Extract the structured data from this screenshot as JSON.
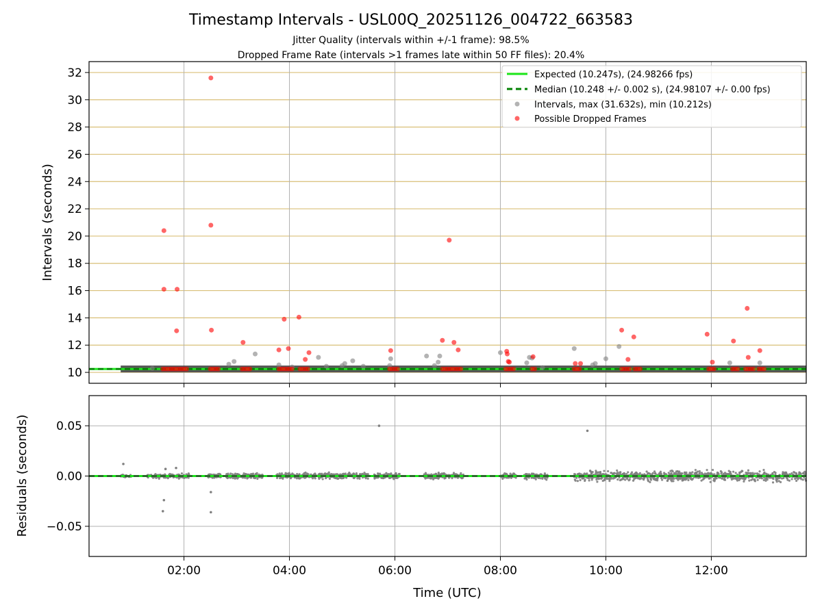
{
  "figure": {
    "title": "Timestamp Intervals - USL00Q_20251126_004722_663583",
    "subtitle_line1": "Jitter Quality (intervals within +/-1 frame): 98.5%",
    "subtitle_line2": "Dropped Frame Rate (intervals >1 frames late within 50 FF files): 20.4%"
  },
  "colors": {
    "expected_line": "#19e619",
    "median_line": "#008000",
    "intervals_points": "#808080",
    "dropped_points": "#ff0000",
    "band": "#444444",
    "hgrid_top": "#d9bf77",
    "grid": "#b0b0b0"
  },
  "chart_data": [
    {
      "type": "scatter",
      "panel": "top",
      "xlabel": "",
      "ylabel": "Intervals (seconds)",
      "xlim": [
        0.2,
        13.8
      ],
      "ylim": [
        9.2,
        32.8
      ],
      "x_ticks": [
        2,
        4,
        6,
        8,
        10,
        12
      ],
      "y_ticks": [
        10,
        12,
        14,
        16,
        18,
        20,
        22,
        24,
        26,
        28,
        30,
        32
      ],
      "grid": "on",
      "legend_position": "top-right",
      "legend": [
        "Expected (10.247s), (24.98266 fps)",
        "Median (10.248 +/- 0.002 s), (24.98107 +/- 0.00 fps)",
        "Intervals, max (31.632s), min (10.212s)",
        "Possible Dropped Frames"
      ],
      "expected_value": 10.247,
      "median_value": 10.248,
      "dense_band": {
        "x_start": 0.8,
        "x_end": 13.8,
        "y_center": 10.25
      },
      "series": [
        {
          "name": "Intervals, max (31.632s), min (10.212s)",
          "points": [
            [
              1.4,
              10.3
            ],
            [
              2.85,
              10.6
            ],
            [
              2.95,
              10.8
            ],
            [
              3.35,
              11.35
            ],
            [
              3.8,
              10.55
            ],
            [
              4.05,
              10.4
            ],
            [
              4.55,
              11.1
            ],
            [
              4.7,
              10.45
            ],
            [
              5.0,
              10.5
            ],
            [
              5.05,
              10.65
            ],
            [
              5.2,
              10.85
            ],
            [
              5.4,
              10.45
            ],
            [
              5.9,
              10.5
            ],
            [
              5.92,
              11.0
            ],
            [
              6.6,
              11.2
            ],
            [
              6.75,
              10.5
            ],
            [
              6.82,
              10.75
            ],
            [
              6.85,
              11.2
            ],
            [
              8.0,
              11.45
            ],
            [
              8.5,
              10.7
            ],
            [
              8.55,
              11.1
            ],
            [
              8.6,
              11.05
            ],
            [
              8.8,
              10.35
            ],
            [
              9.4,
              11.75
            ],
            [
              9.75,
              10.55
            ],
            [
              9.8,
              10.65
            ],
            [
              10.0,
              11.0
            ],
            [
              10.25,
              11.9
            ],
            [
              12.35,
              10.7
            ],
            [
              12.92,
              10.7
            ]
          ]
        },
        {
          "name": "Possible Dropped Frames",
          "points": [
            [
              1.62,
              20.4
            ],
            [
              1.62,
              16.1
            ],
            [
              1.87,
              16.1
            ],
            [
              1.86,
              13.05
            ],
            [
              2.51,
              31.6
            ],
            [
              2.51,
              20.8
            ],
            [
              2.52,
              13.1
            ],
            [
              3.12,
              12.2
            ],
            [
              3.8,
              11.65
            ],
            [
              3.9,
              13.9
            ],
            [
              3.98,
              11.75
            ],
            [
              4.18,
              14.05
            ],
            [
              4.3,
              10.95
            ],
            [
              4.37,
              11.45
            ],
            [
              5.92,
              11.6
            ],
            [
              6.9,
              12.35
            ],
            [
              7.03,
              19.7
            ],
            [
              7.12,
              12.2
            ],
            [
              7.2,
              11.65
            ],
            [
              8.12,
              11.55
            ],
            [
              8.13,
              11.35
            ],
            [
              8.15,
              10.8
            ],
            [
              8.17,
              10.75
            ],
            [
              8.62,
              11.15
            ],
            [
              9.42,
              10.65
            ],
            [
              9.52,
              10.65
            ],
            [
              10.3,
              13.1
            ],
            [
              10.42,
              10.95
            ],
            [
              10.53,
              12.6
            ],
            [
              11.92,
              12.8
            ],
            [
              12.02,
              10.75
            ],
            [
              12.42,
              12.3
            ],
            [
              12.68,
              14.7
            ],
            [
              12.7,
              11.1
            ],
            [
              12.92,
              11.6
            ],
            [
              1.6,
              10.25
            ],
            [
              1.65,
              10.25
            ],
            [
              1.7,
              10.25
            ],
            [
              1.75,
              10.25
            ],
            [
              1.8,
              10.25
            ],
            [
              1.85,
              10.25
            ],
            [
              1.9,
              10.25
            ],
            [
              1.95,
              10.25
            ],
            [
              2.0,
              10.25
            ],
            [
              2.05,
              10.25
            ],
            [
              2.5,
              10.25
            ],
            [
              2.55,
              10.25
            ],
            [
              2.6,
              10.25
            ],
            [
              2.65,
              10.25
            ],
            [
              3.1,
              10.25
            ],
            [
              3.15,
              10.25
            ],
            [
              3.2,
              10.25
            ],
            [
              3.25,
              10.25
            ],
            [
              3.8,
              10.25
            ],
            [
              3.85,
              10.25
            ],
            [
              3.9,
              10.25
            ],
            [
              3.95,
              10.25
            ],
            [
              4.0,
              10.25
            ],
            [
              4.05,
              10.25
            ],
            [
              4.2,
              10.25
            ],
            [
              4.25,
              10.25
            ],
            [
              4.3,
              10.25
            ],
            [
              4.35,
              10.25
            ],
            [
              5.9,
              10.25
            ],
            [
              5.95,
              10.25
            ],
            [
              6.0,
              10.25
            ],
            [
              6.05,
              10.25
            ],
            [
              6.9,
              10.25
            ],
            [
              6.95,
              10.25
            ],
            [
              7.0,
              10.25
            ],
            [
              7.05,
              10.25
            ],
            [
              7.1,
              10.25
            ],
            [
              7.15,
              10.25
            ],
            [
              7.2,
              10.25
            ],
            [
              7.25,
              10.25
            ],
            [
              8.1,
              10.25
            ],
            [
              8.15,
              10.25
            ],
            [
              8.2,
              10.25
            ],
            [
              8.25,
              10.25
            ],
            [
              8.6,
              10.25
            ],
            [
              8.65,
              10.25
            ],
            [
              9.4,
              10.25
            ],
            [
              9.45,
              10.25
            ],
            [
              9.5,
              10.25
            ],
            [
              10.3,
              10.25
            ],
            [
              10.35,
              10.25
            ],
            [
              10.4,
              10.25
            ],
            [
              10.45,
              10.25
            ],
            [
              10.55,
              10.25
            ],
            [
              10.6,
              10.25
            ],
            [
              10.65,
              10.25
            ],
            [
              11.95,
              10.25
            ],
            [
              12.0,
              10.25
            ],
            [
              12.05,
              10.25
            ],
            [
              12.4,
              10.25
            ],
            [
              12.45,
              10.25
            ],
            [
              12.5,
              10.25
            ],
            [
              12.65,
              10.25
            ],
            [
              12.7,
              10.25
            ],
            [
              12.75,
              10.25
            ],
            [
              12.8,
              10.25
            ],
            [
              12.9,
              10.25
            ],
            [
              12.95,
              10.25
            ],
            [
              13.0,
              10.25
            ]
          ]
        }
      ]
    },
    {
      "type": "scatter",
      "panel": "bottom",
      "xlabel": "Time (UTC)",
      "ylabel": "Residuals (seconds)",
      "xlim": [
        0.2,
        13.8
      ],
      "ylim": [
        -0.08,
        0.08
      ],
      "x_ticks": [
        2,
        4,
        6,
        8,
        10,
        12
      ],
      "x_tick_labels": [
        "02:00",
        "04:00",
        "06:00",
        "08:00",
        "10:00",
        "12:00"
      ],
      "y_ticks": [
        -0.05,
        0.0,
        0.05
      ],
      "y_tick_labels": [
        "−0.05",
        "0.00",
        "0.05"
      ],
      "grid": "on",
      "outliers": [
        [
          0.85,
          0.012
        ],
        [
          1.65,
          0.007
        ],
        [
          1.85,
          0.008
        ],
        [
          1.62,
          -0.024
        ],
        [
          1.6,
          -0.035
        ],
        [
          2.51,
          -0.016
        ],
        [
          2.51,
          -0.036
        ],
        [
          5.7,
          0.05
        ],
        [
          9.65,
          0.045
        ]
      ],
      "clusters": [
        {
          "x_start": 0.8,
          "x_end": 1.0,
          "spread": 0.002
        },
        {
          "x_start": 1.3,
          "x_end": 2.1,
          "spread": 0.003
        },
        {
          "x_start": 2.45,
          "x_end": 2.7,
          "spread": 0.003
        },
        {
          "x_start": 2.8,
          "x_end": 3.5,
          "spread": 0.004
        },
        {
          "x_start": 3.75,
          "x_end": 4.5,
          "spread": 0.004
        },
        {
          "x_start": 4.55,
          "x_end": 5.5,
          "spread": 0.004
        },
        {
          "x_start": 5.6,
          "x_end": 6.1,
          "spread": 0.004
        },
        {
          "x_start": 6.55,
          "x_end": 7.3,
          "spread": 0.004
        },
        {
          "x_start": 8.0,
          "x_end": 8.3,
          "spread": 0.004
        },
        {
          "x_start": 8.45,
          "x_end": 8.9,
          "spread": 0.004
        },
        {
          "x_start": 9.4,
          "x_end": 13.8,
          "spread": 0.007
        }
      ]
    }
  ]
}
